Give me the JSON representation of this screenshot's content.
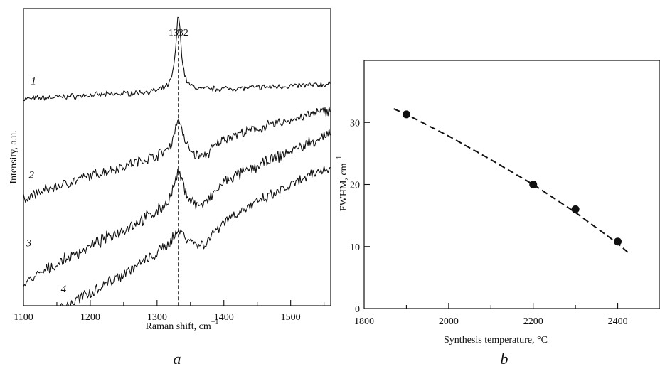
{
  "chart_data": [
    {
      "id": "a",
      "type": "line",
      "panel_letter": "a",
      "xlabel": "Raman shift, cm",
      "xlabel_sup": "−1",
      "ylabel": "Intensity, a.u.",
      "xlim": [
        1100,
        1560
      ],
      "x_ticks": [
        "1100",
        "1200",
        "1300",
        "1400",
        "1500"
      ],
      "peak": {
        "x": 1332,
        "label": "1332",
        "marker": "dashed vertical line"
      },
      "series": [
        {
          "label": "1",
          "start_y": 0.695,
          "end_y": 0.745,
          "peak_height": 0.25,
          "peak_width": 5,
          "dip": 0.0,
          "noise": 0.007
        },
        {
          "label": "2",
          "start_y": 0.36,
          "end_y": 0.66,
          "peak_height": 0.11,
          "peak_width": 7,
          "dip": 0.045,
          "noise": 0.013
        },
        {
          "label": "3",
          "start_y": 0.07,
          "end_y": 0.58,
          "peak_height": 0.1,
          "peak_width": 9,
          "dip": 0.05,
          "noise": 0.015
        },
        {
          "label": "4",
          "start_y": -0.1,
          "end_y": 0.47,
          "peak_height": 0.045,
          "peak_width": 14,
          "dip": 0.05,
          "noise": 0.015
        }
      ]
    },
    {
      "id": "b",
      "type": "scatter",
      "panel_letter": "b",
      "xlabel": "Synthesis temperature, °C",
      "ylabel": "FWHM, cm",
      "ylabel_sup": "−1",
      "xlim": [
        1800,
        2500
      ],
      "ylim": [
        0,
        40
      ],
      "x_ticks": [
        "1800",
        "2000",
        "2200",
        "2400"
      ],
      "y_ticks": [
        "0",
        "10",
        "20",
        "30"
      ],
      "points": [
        {
          "x": 1900,
          "y": 31.3
        },
        {
          "x": 2200,
          "y": 20.0
        },
        {
          "x": 2300,
          "y": 16.0
        },
        {
          "x": 2400,
          "y": 10.8
        }
      ],
      "trend": {
        "style": "dashed",
        "x": [
          1870,
          1900,
          2000,
          2100,
          2200,
          2300,
          2400,
          2430
        ],
        "y": [
          32.2,
          31.3,
          27.8,
          24.0,
          20.0,
          15.5,
          10.5,
          8.7
        ]
      }
    }
  ]
}
